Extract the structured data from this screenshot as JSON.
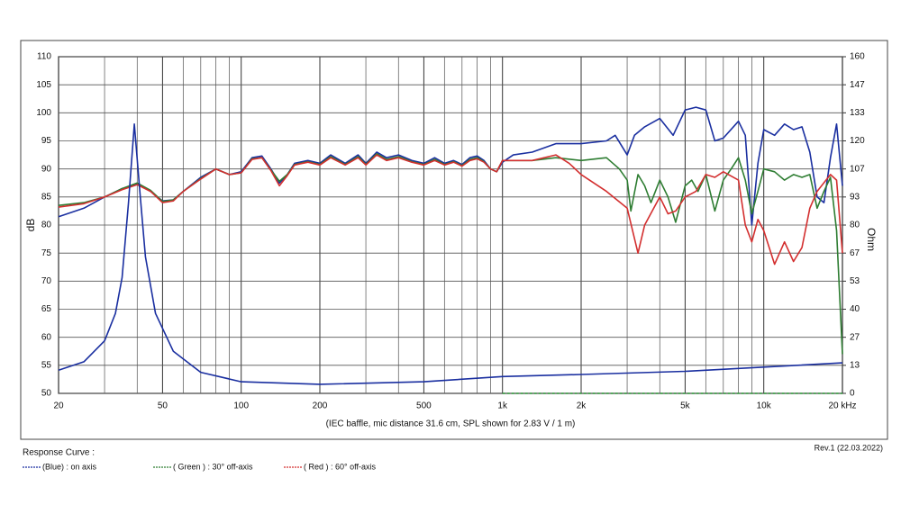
{
  "chart_data": {
    "type": "line",
    "xlabel": "(IEC baffle, mic distance 31.6 cm, SPL shown for 2.83 V / 1 m)",
    "ylabel": "dB",
    "y2label": "Ohm",
    "legend_title": "Response Curve :",
    "annotation": "Rev.1 (22.03.2022)",
    "xscale": "log",
    "grid": true,
    "xlim": [
      20,
      20000
    ],
    "xticks": [
      20,
      50,
      100,
      200,
      500,
      {
        "value": 1000,
        "label": "1k"
      },
      {
        "value": 2000,
        "label": "2k"
      },
      {
        "value": 5000,
        "label": "5k"
      },
      {
        "value": 10000,
        "label": "10k"
      },
      {
        "value": 20000,
        "label": "20 kHz"
      }
    ],
    "xgrid_minor": [
      30,
      40,
      60,
      70,
      80,
      90,
      300,
      400,
      600,
      700,
      800,
      900,
      3000,
      4000,
      6000,
      7000,
      8000,
      9000
    ],
    "ylim": [
      50,
      110
    ],
    "yticks": [
      50,
      55,
      60,
      65,
      70,
      75,
      80,
      85,
      90,
      95,
      100,
      105,
      110
    ],
    "y2lim": [
      0,
      160
    ],
    "y2ticks": [
      0,
      {
        "value": 13.33,
        "label": "13"
      },
      {
        "value": 26.67,
        "label": "27"
      },
      40,
      {
        "value": 53.33,
        "label": "53"
      },
      {
        "value": 66.67,
        "label": "67"
      },
      80,
      {
        "value": 93.33,
        "label": "93"
      },
      {
        "value": 106.67,
        "label": "107"
      },
      120,
      {
        "value": 133.33,
        "label": "133"
      },
      {
        "value": 146.67,
        "label": "147"
      },
      160
    ],
    "series": [
      {
        "name": "(Blue)  : on axis",
        "color": "#1a2fa0",
        "x": [
          20,
          25,
          30,
          35,
          40,
          45,
          50,
          55,
          60,
          70,
          80,
          90,
          100,
          110,
          120,
          130,
          140,
          150,
          160,
          180,
          200,
          220,
          250,
          280,
          300,
          330,
          360,
          400,
          450,
          500,
          550,
          600,
          650,
          700,
          750,
          800,
          850,
          900,
          950,
          1000,
          1100,
          1300,
          1600,
          2000,
          2500,
          2700,
          3000,
          3200,
          3500,
          4000,
          4500,
          5000,
          5500,
          6000,
          6500,
          7000,
          8000,
          8500,
          9000,
          9500,
          10000,
          11000,
          12000,
          13000,
          14000,
          15000,
          16000,
          17000,
          18000,
          19000,
          20000
        ],
        "values": [
          81.5,
          83,
          85,
          86.5,
          87.3,
          86,
          84.3,
          84.5,
          86,
          88.5,
          90,
          89,
          89.5,
          92,
          92.3,
          90,
          87.5,
          89,
          91,
          91.5,
          91,
          92.5,
          91,
          92.5,
          91,
          93,
          92,
          92.5,
          91.5,
          91,
          92,
          91,
          91.5,
          90.8,
          92,
          92.3,
          91.5,
          90,
          89.5,
          91.2,
          92.5,
          93,
          94.5,
          94.5,
          95,
          96,
          92.5,
          96,
          97.5,
          99,
          96,
          100.5,
          101,
          100.5,
          95,
          95.5,
          98.5,
          96,
          80,
          91,
          97,
          96,
          98,
          97,
          97.5,
          93,
          85,
          84,
          92,
          98,
          87
        ]
      },
      {
        "name": "( Green ) : 30° off-axis",
        "color": "#2e7d32",
        "x": [
          20,
          25,
          30,
          35,
          40,
          45,
          50,
          55,
          60,
          70,
          80,
          90,
          100,
          110,
          120,
          130,
          140,
          150,
          160,
          180,
          200,
          220,
          250,
          280,
          300,
          330,
          360,
          400,
          450,
          500,
          550,
          600,
          650,
          700,
          750,
          800,
          850,
          900,
          950,
          1000,
          1300,
          1600,
          2000,
          2500,
          2800,
          3000,
          3100,
          3300,
          3500,
          3700,
          4000,
          4300,
          4600,
          5000,
          5300,
          5600,
          6000,
          6500,
          7000,
          7500,
          8000,
          8500,
          9000,
          9500,
          10000,
          11000,
          12000,
          13000,
          14000,
          15000,
          16000,
          17000,
          18000,
          19000,
          20000
        ],
        "values": [
          83.5,
          84,
          85,
          86.5,
          87.5,
          86.2,
          84.2,
          84.5,
          86,
          88.3,
          90,
          89,
          89.3,
          91.8,
          92,
          89.8,
          87.8,
          89,
          90.8,
          91.3,
          90.8,
          92.2,
          90.8,
          92.2,
          90.8,
          92.7,
          91.7,
          92.2,
          91.3,
          90.8,
          91.7,
          90.8,
          91.3,
          90.6,
          91.7,
          92,
          91.3,
          90,
          89.5,
          91.5,
          91.5,
          92,
          91.5,
          92,
          90,
          88,
          82.5,
          89,
          87,
          84,
          88,
          85,
          80.5,
          87,
          88,
          86,
          89,
          82.5,
          88,
          90,
          92,
          88,
          82,
          86,
          90,
          89.5,
          88,
          89,
          88.5,
          89,
          83,
          86,
          88.5,
          79,
          57
        ]
      },
      {
        "name": "( Red ) : 60° off-axis",
        "color": "#d32f2f",
        "x": [
          20,
          25,
          30,
          35,
          40,
          45,
          50,
          55,
          60,
          70,
          80,
          90,
          100,
          110,
          120,
          130,
          140,
          150,
          160,
          180,
          200,
          220,
          250,
          280,
          300,
          330,
          360,
          400,
          450,
          500,
          550,
          600,
          650,
          700,
          750,
          800,
          850,
          900,
          950,
          1000,
          1300,
          1600,
          1800,
          2000,
          2500,
          3000,
          3300,
          3500,
          4000,
          4300,
          4600,
          5000,
          5500,
          6000,
          6500,
          7000,
          8000,
          8500,
          9000,
          9500,
          10000,
          11000,
          12000,
          13000,
          14000,
          15000,
          16000,
          18000,
          19000,
          20000
        ],
        "values": [
          83.2,
          83.8,
          85,
          86.3,
          87.2,
          86,
          84,
          84.3,
          86,
          88.2,
          90,
          89,
          89.3,
          91.7,
          92,
          89.7,
          87,
          88.8,
          90.7,
          91.2,
          90.7,
          92,
          90.7,
          92,
          90.7,
          92.5,
          91.5,
          92,
          91.2,
          90.7,
          91.5,
          90.7,
          91.2,
          90.5,
          91.5,
          91.8,
          91.2,
          90,
          89.5,
          91.5,
          91.5,
          92.5,
          91,
          89,
          86,
          83,
          75,
          80,
          85,
          82,
          82.5,
          85,
          86,
          89,
          88.5,
          89.5,
          88,
          80,
          77,
          81,
          79,
          73,
          77,
          73.5,
          76,
          83,
          86,
          89,
          88,
          75
        ]
      },
      {
        "color": "#1a2fa0",
        "axis": "y2",
        "x": [
          20,
          25,
          30,
          33,
          35,
          37,
          39,
          41,
          43,
          47,
          55,
          70,
          100,
          200,
          500,
          1000,
          2000,
          5000,
          10000,
          20000
        ],
        "values": [
          11,
          15,
          25,
          38,
          55,
          90,
          128,
          95,
          65,
          38,
          20,
          10,
          5.5,
          4.3,
          5.5,
          8,
          9,
          10.5,
          12.5,
          14.5
        ]
      },
      {
        "color": "#2e9d3a",
        "axis": "y2",
        "dashed": true,
        "x": [
          1000,
          20000
        ],
        "values": [
          0,
          0
        ]
      }
    ]
  }
}
